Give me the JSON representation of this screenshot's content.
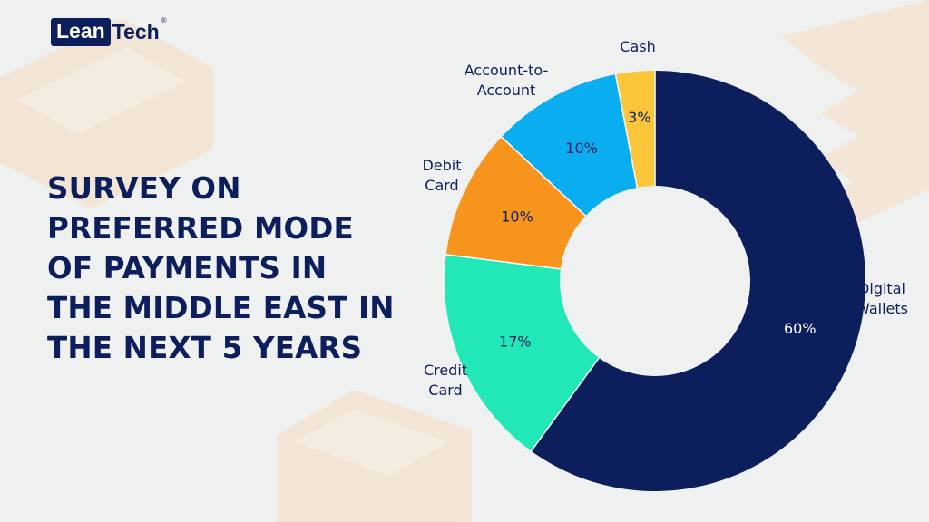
{
  "brand": {
    "logo_left": "Lean",
    "logo_right": "Tech",
    "logo_mark": "®"
  },
  "title_lines": [
    "SURVEY ON",
    "PREFERRED MODE",
    "OF PAYMENTS IN",
    "THE MIDDLE EAST IN",
    "THE NEXT 5 YEARS"
  ],
  "colors": {
    "background": "#eff1f1",
    "navy": "#0c1f5c",
    "decor": "#f6dcc0"
  },
  "chart_data": {
    "type": "pie",
    "variant": "donut",
    "title": "SURVEY ON PREFERRED MODE OF PAYMENTS IN THE MIDDLE EAST IN THE NEXT 5 YEARS",
    "legend": "none (slice labels outside)",
    "slices": [
      {
        "label": [
          "Digital",
          "Wallets"
        ],
        "value": 60,
        "value_label": "60%",
        "color": "#0c1f5c",
        "value_text_color": "#ffffff"
      },
      {
        "label": [
          "Credit",
          "Card"
        ],
        "value": 17,
        "value_label": "17%",
        "color": "#22e8b7",
        "value_text_color": "#0c1f5c"
      },
      {
        "label": [
          "Debit",
          "Card"
        ],
        "value": 10,
        "value_label": "10%",
        "color": "#f7941d",
        "value_text_color": "#0c1f5c"
      },
      {
        "label": [
          "Account-to-",
          "Account"
        ],
        "value": 10,
        "value_label": "10%",
        "color": "#0aaef0",
        "value_text_color": "#0c1f5c"
      },
      {
        "label": [
          "Cash"
        ],
        "value": 3,
        "value_label": "3%",
        "color": "#fbc63a",
        "value_text_color": "#0c1f5c"
      }
    ]
  }
}
